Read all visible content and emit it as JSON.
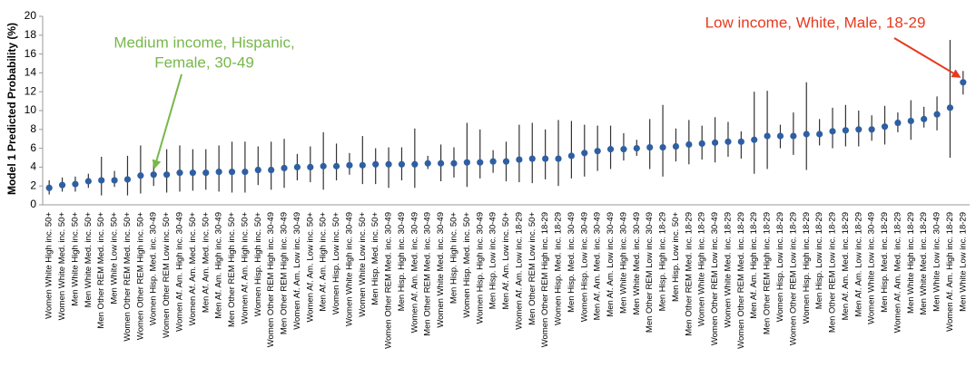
{
  "chart_data": {
    "type": "errorbar",
    "y_label": "Model 1 Predicted Probability (%)",
    "categories": [
      "Women White High inc. 50+",
      "Women White Med. inc. 50+",
      "Men White High inc. 50+",
      "Men White Med. inc. 50+",
      "Men Other REM Med. inc. 50+",
      "Men White Low inc. 50+",
      "Women Other REM Med. inc. 50+",
      "Women Other REM High inc. 50+",
      "Women Hisp. Med. inc. 30-49",
      "Women Other REM Low inc. 50+",
      "Women Af. Am. High inc. 30-49",
      "Women Af. Am. Med. inc. 50+",
      "Men Af. Am. Med. inc. 50+",
      "Men Af. Am. High inc. 30-49",
      "Men Other REM High inc. 50+",
      "Women Af. Am. High inc. 50+",
      "Women Hisp. High inc. 50+",
      "Women Other REM High inc. 30-49",
      "Men Other REM High inc. 30-49",
      "Women Af. Am. Low inc. 30-49",
      "Women Af. Am. Low inc. 50+",
      "Men Af. Am. High inc. 50+",
      "Women Hisp. Low inc. 50+",
      "Women White High inc. 30-49",
      "Women White Low inc. 50+",
      "Men Hisp. Med. inc. 50+",
      "Women Other REM Med. inc. 30-49",
      "Men Hisp. High inc. 30-49",
      "Women Af. Am. Med. inc. 30-49",
      "Men Other REM Med. inc. 30-49",
      "Women White Med. inc. 30-49",
      "Men Hisp. High inc. 50+",
      "Women Hisp. Med. inc. 50+",
      "Women Hisp. High inc. 30-49",
      "Men Hisp. Low inc. 30-49",
      "Men Af. Am. Low inc. 50+",
      "Women Af. Am. Low inc. 18-29",
      "Men Other REM Low inc. 50+",
      "Women Other REM High inc. 18-29",
      "Women Hisp. Med. inc. 18-29",
      "Men Hisp. Med. inc. 30-49",
      "Women Hisp. Low inc. 30-49",
      "Men Af. Am. Med. inc. 30-49",
      "Men Af. Am. Low inc. 30-49",
      "Men White High inc. 30-49",
      "Men White Med. inc. 30-49",
      "Men Other REM Low inc. 30-49",
      "Men Hisp. High inc. 18-29",
      "Men Hisp. Low inc. 50+",
      "Men Other REM Med. inc. 18-29",
      "Women White High inc. 18-29",
      "Women Other REM Low inc. 30-49",
      "Women White Med. inc. 18-29",
      "Women Other REM Med. inc. 18-29",
      "Men Af. Am. High inc. 18-29",
      "Men Other REM High inc. 18-29",
      "Women Hisp. Low inc. 18-29",
      "Women Other REM Low inc. 18-29",
      "Women Hisp. High inc. 18-29",
      "Men Hisp. Low inc. 18-29",
      "Men Other REM Low inc. 18-29",
      "Men Af. Am. Med. inc. 18-29",
      "Men Af. Am. Low inc. 18-29",
      "Women White Low inc. 30-49",
      "Men Hisp. Med. inc. 18-29",
      "Women Af. Am. Med. inc. 18-29",
      "Men White High inc. 18-29",
      "Men White Med. inc. 18-29",
      "Men White Low inc. 30-49",
      "Women Af. Am. High inc. 18-29",
      "Men White Low inc. 18-29"
    ],
    "series": [
      {
        "color": "#2e5fa3",
        "values": [
          1.8,
          2.1,
          2.2,
          2.5,
          2.6,
          2.6,
          2.7,
          3.1,
          3.2,
          3.2,
          3.4,
          3.4,
          3.4,
          3.5,
          3.5,
          3.5,
          3.7,
          3.7,
          3.9,
          4.0,
          4.0,
          4.1,
          4.1,
          4.2,
          4.2,
          4.3,
          4.3,
          4.3,
          4.3,
          4.4,
          4.4,
          4.4,
          4.5,
          4.5,
          4.6,
          4.6,
          4.8,
          4.9,
          4.9,
          4.9,
          5.2,
          5.5,
          5.7,
          5.9,
          5.9,
          6.0,
          6.1,
          6.1,
          6.2,
          6.4,
          6.5,
          6.6,
          6.7,
          6.7,
          6.9,
          7.3,
          7.3,
          7.3,
          7.5,
          7.5,
          7.8,
          7.9,
          8.0,
          8.0,
          8.3,
          8.7,
          8.9,
          9.1,
          9.6,
          10.3,
          13.0
        ],
        "lower": [
          1.1,
          1.4,
          1.4,
          1.8,
          1.0,
          1.9,
          1.0,
          1.2,
          2.0,
          1.3,
          1.4,
          1.5,
          1.6,
          1.4,
          1.3,
          1.3,
          2.1,
          1.6,
          1.8,
          2.6,
          2.4,
          1.6,
          2.6,
          3.2,
          2.2,
          2.2,
          1.8,
          2.6,
          1.8,
          3.8,
          2.5,
          2.9,
          1.9,
          2.8,
          3.4,
          2.5,
          2.4,
          2.3,
          2.7,
          2.0,
          2.8,
          3.0,
          3.6,
          3.8,
          4.7,
          5.2,
          3.8,
          3.0,
          4.6,
          4.3,
          4.8,
          4.5,
          5.1,
          4.9,
          3.3,
          3.8,
          6.0,
          5.3,
          3.7,
          6.3,
          6.0,
          6.2,
          6.2,
          6.8,
          6.4,
          7.7,
          6.9,
          8.2,
          7.9,
          5.0,
          11.7
        ],
        "upper": [
          2.6,
          2.9,
          3.0,
          3.3,
          5.1,
          3.6,
          5.2,
          6.3,
          4.6,
          5.9,
          6.3,
          5.9,
          5.9,
          6.3,
          6.7,
          6.7,
          6.2,
          6.7,
          7.0,
          5.4,
          6.2,
          7.7,
          6.5,
          5.5,
          7.3,
          6.0,
          6.1,
          6.1,
          8.1,
          5.2,
          6.4,
          6.1,
          8.7,
          8.0,
          5.8,
          6.7,
          8.5,
          8.7,
          8.0,
          9.0,
          8.9,
          8.5,
          8.4,
          8.4,
          7.6,
          6.9,
          9.1,
          10.6,
          8.1,
          9.0,
          8.4,
          9.3,
          8.8,
          7.8,
          12.0,
          12.1,
          8.5,
          9.8,
          13.0,
          9.1,
          10.3,
          10.6,
          10.0,
          9.5,
          10.5,
          9.8,
          11.1,
          10.4,
          11.5,
          17.5,
          14.2
        ]
      }
    ],
    "ylim": [
      0,
      20
    ],
    "yticks": [
      0,
      2,
      4,
      6,
      8,
      10,
      12,
      14,
      16,
      18,
      20
    ],
    "annotations": [
      {
        "text_lines": [
          "Medium income, Hispanic,",
          "Female, 30-49"
        ],
        "color": "#77b84a",
        "category": 8
      },
      {
        "text_lines": [
          "Low income, White, Male, 18-29"
        ],
        "color": "#e8391e",
        "category": 70
      }
    ]
  }
}
